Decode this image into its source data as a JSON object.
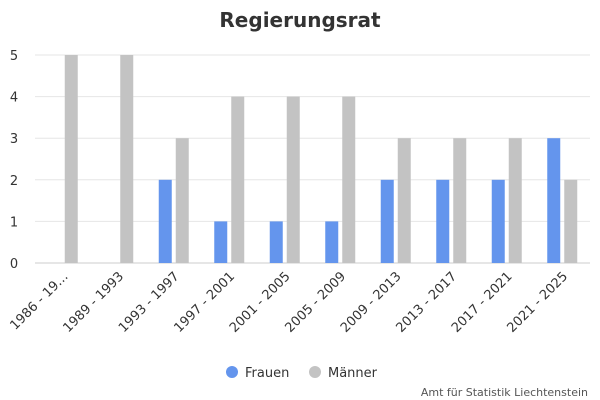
{
  "colors": {
    "frauen": "#6495ED",
    "maenner": "#C3C3C3",
    "grid": "#E6E6E6",
    "axis": "#CCCCCC"
  },
  "credit": "Amt für Statistik Liechtenstein",
  "chart_data": {
    "type": "bar",
    "title": "Regierungsrat",
    "xlabel": "",
    "ylabel": "",
    "ylim": [
      0,
      5
    ],
    "yticks": [
      0,
      1,
      2,
      3,
      4,
      5
    ],
    "grid": true,
    "legend": "bottom-center",
    "categories": [
      "1986 - 19…",
      "1989 - 1993",
      "1993 - 1997",
      "1997 - 2001",
      "2001 - 2005",
      "2005 - 2009",
      "2009 - 2013",
      "2013 - 2017",
      "2017 - 2021",
      "2021 - 2025"
    ],
    "series": [
      {
        "name": "Frauen",
        "values": [
          0,
          0,
          2,
          1,
          1,
          1,
          2,
          2,
          2,
          3
        ]
      },
      {
        "name": "Männer",
        "values": [
          5,
          5,
          3,
          4,
          4,
          4,
          3,
          3,
          3,
          2
        ]
      }
    ]
  }
}
